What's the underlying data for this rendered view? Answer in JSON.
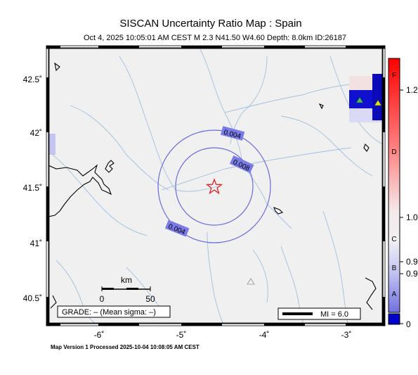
{
  "title": "SISCAN Uncertainty Ratio Map : Spain",
  "subtitle": "Oct  4, 2025 10:05:01 AM CEST   M 2.3    N41.50 W4.60    Depth: 8.0km    ID:26187",
  "lat_labels": [
    "42.5˚",
    "42˚",
    "41.5˚",
    "41˚",
    "40.5˚"
  ],
  "lon_labels": [
    "-6˚",
    "-5˚",
    "-4˚",
    "-3˚"
  ],
  "contour_labels": [
    "0.004",
    "0.008",
    "0.004"
  ],
  "grade_text": "GRADE: – (Mean sigma: –)",
  "mi_text": "MI = 6.0",
  "scale": {
    "unit": "km",
    "start": "0",
    "end": "50"
  },
  "colorbar": {
    "letters": [
      "F",
      "D",
      "C",
      "B",
      "A"
    ],
    "ticks": [
      "1.2",
      "1.0",
      "0.9",
      "0.9",
      "0"
    ]
  },
  "footer": "Map Version 1 Processed 2025-10-04 10:08:05 AM CEST",
  "colors": {
    "land": "#f0f0f0",
    "contour": "#6a6ae0",
    "contour_label_bg": "#7b7be8",
    "epicenter": "#e02020",
    "rivers": "#9fc0e0",
    "colorbar_top": "#ff0000",
    "colorbar_bottom": "#0000c8"
  },
  "icons": [
    "epicenter-star-icon",
    "station-triangle-icon"
  ]
}
